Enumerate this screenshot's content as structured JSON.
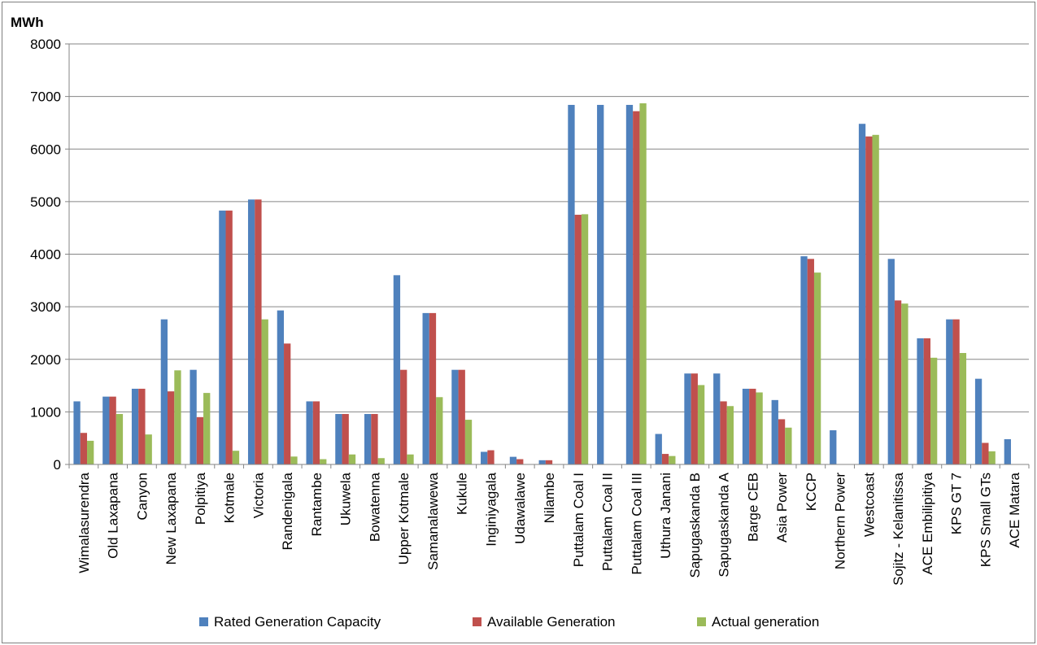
{
  "chart_data": {
    "type": "bar",
    "title": "",
    "ylabel": "MWh",
    "xlabel": "",
    "ylim": [
      0,
      8000
    ],
    "yticks": [
      0,
      1000,
      2000,
      3000,
      4000,
      5000,
      6000,
      7000,
      8000
    ],
    "grid": "horizontal",
    "legend_position": "bottom",
    "categories": [
      "Wimalasurendra",
      "Old Laxapana",
      "Canyon",
      "New Laxapana",
      "Polpitiya",
      "Kotmale",
      "Victoria",
      "Randenigala",
      "Rantambe",
      "Ukuwela",
      "Bowatenna",
      "Upper Kotmale",
      "Samanalawewa",
      "Kukule",
      "Inginiyagala",
      "Udawalawe",
      "Nilambe",
      "Puttalam Coal I",
      "Puttalam Coal II",
      "Puttalam Coal III",
      "Uthura Janani",
      "Sapugaskanda B",
      "Sapugaskanda A",
      "Barge CEB",
      "Asia Power",
      "KCCP",
      "Northern Power",
      "Westcoast",
      "Sojitz - Kelanitissa",
      "ACE Embilipitiya",
      "KPS GT 7",
      "KPS Small GTs",
      "ACE Matara"
    ],
    "series": [
      {
        "name": "Rated Generation Capacity",
        "color": "#4f81bd",
        "values": [
          1200,
          1290,
          1440,
          2760,
          1800,
          4830,
          5040,
          2930,
          1200,
          960,
          960,
          3600,
          2880,
          1800,
          240,
          145,
          80,
          6840,
          6840,
          6840,
          580,
          1730,
          1730,
          1440,
          1225,
          3960,
          650,
          6480,
          3910,
          2400,
          2760,
          1630,
          480
        ]
      },
      {
        "name": "Available Generation",
        "color": "#c0504d",
        "values": [
          600,
          1290,
          1440,
          1390,
          900,
          4830,
          5040,
          2300,
          1200,
          960,
          960,
          1800,
          2880,
          1800,
          270,
          100,
          80,
          4750,
          0,
          6720,
          200,
          1730,
          1200,
          1440,
          860,
          3910,
          0,
          6240,
          3120,
          2400,
          2760,
          410,
          0
        ]
      },
      {
        "name": "Actual generation",
        "color": "#9bbb59",
        "values": [
          450,
          960,
          570,
          1790,
          1360,
          260,
          2760,
          150,
          100,
          190,
          120,
          190,
          1280,
          850,
          0,
          0,
          0,
          4760,
          0,
          6870,
          160,
          1510,
          1110,
          1370,
          700,
          3650,
          0,
          6270,
          3060,
          2030,
          2120,
          250,
          0
        ]
      }
    ]
  }
}
